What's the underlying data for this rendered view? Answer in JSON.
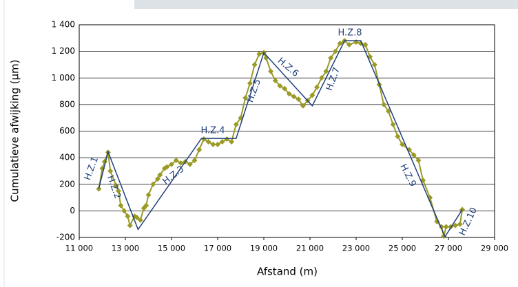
{
  "chart_data": {
    "type": "line",
    "x_label": "Afstand (m)",
    "y_label": "Cumulatieve afwijking (µm)",
    "xlim": [
      11000,
      29000
    ],
    "xticks": [
      {
        "value": 11000,
        "label": "11 000"
      },
      {
        "value": 13000,
        "label": "13 000"
      },
      {
        "value": 15000,
        "label": "15 000"
      },
      {
        "value": 17000,
        "label": "17 000"
      },
      {
        "value": 19000,
        "label": "19 000"
      },
      {
        "value": 21000,
        "label": "21 000"
      },
      {
        "value": 23000,
        "label": "23 000"
      },
      {
        "value": 25000,
        "label": "25 000"
      },
      {
        "value": 27000,
        "label": "27 000"
      },
      {
        "value": 29000,
        "label": "29 000"
      }
    ],
    "ylim": [
      -200,
      1400
    ],
    "yticks": [
      -200,
      0,
      200,
      400,
      600,
      800,
      {
        "value": 1000,
        "label": "1 000"
      },
      {
        "value": 1200,
        "label": "1 200"
      },
      {
        "value": 1400,
        "label": "1 400"
      }
    ],
    "grid": true,
    "series": [
      {
        "color": "#9a9a26",
        "marker": "diamond",
        "x": [
          11850,
          12000,
          12100,
          12250,
          12350,
          12600,
          12700,
          12800,
          12950,
          13100,
          13200,
          13400,
          13500,
          13650,
          13800,
          13900,
          14000,
          14200,
          14400,
          14500,
          14700,
          14800,
          15000,
          15200,
          15400,
          15600,
          15800,
          16000,
          16200,
          16400,
          16600,
          16800,
          17000,
          17200,
          17400,
          17600,
          17800,
          18000,
          18200,
          18400,
          18600,
          18800,
          19000,
          19100,
          19300,
          19500,
          19700,
          19900,
          20100,
          20300,
          20500,
          20700,
          20900,
          21100,
          21300,
          21500,
          21700,
          21900,
          22100,
          22300,
          22500,
          22700,
          23000,
          23200,
          23400,
          23600,
          23800,
          24000,
          24200,
          24400,
          24600,
          24800,
          25000,
          25300,
          25500,
          25700,
          25900,
          26200,
          26500,
          26700,
          26800,
          26900,
          27100,
          27300,
          27500,
          27600
        ],
        "values": [
          165,
          320,
          370,
          440,
          300,
          190,
          150,
          40,
          0,
          -40,
          -110,
          -40,
          -50,
          -70,
          20,
          40,
          120,
          200,
          240,
          270,
          320,
          330,
          350,
          380,
          360,
          370,
          350,
          380,
          460,
          540,
          520,
          500,
          500,
          520,
          540,
          520,
          650,
          700,
          850,
          960,
          1100,
          1180,
          1190,
          1150,
          1050,
          980,
          940,
          920,
          880,
          860,
          840,
          790,
          830,
          870,
          930,
          1000,
          1050,
          1150,
          1200,
          1260,
          1280,
          1250,
          1270,
          1260,
          1250,
          1160,
          1100,
          950,
          800,
          750,
          650,
          560,
          500,
          460,
          420,
          380,
          230,
          100,
          -80,
          -120,
          -190,
          -120,
          -120,
          -110,
          -100,
          10
        ]
      },
      {
        "color": "#1f3f7a",
        "marker": "none",
        "x": [
          11850,
          12250,
          13550,
          16300,
          17800,
          19000,
          21100,
          22500,
          23200,
          26850,
          27600
        ],
        "values": [
          170,
          445,
          -140,
          545,
          545,
          1190,
          790,
          1280,
          1280,
          -195,
          10
        ]
      }
    ],
    "annotations": [
      "H.Z.1",
      "H.Z.2",
      "H.Z.3",
      "H.Z.4",
      "H.Z.5",
      "H.Z.6",
      "H.Z.7",
      "H.Z.8",
      "H.Z.9",
      "H.Z.10"
    ]
  }
}
